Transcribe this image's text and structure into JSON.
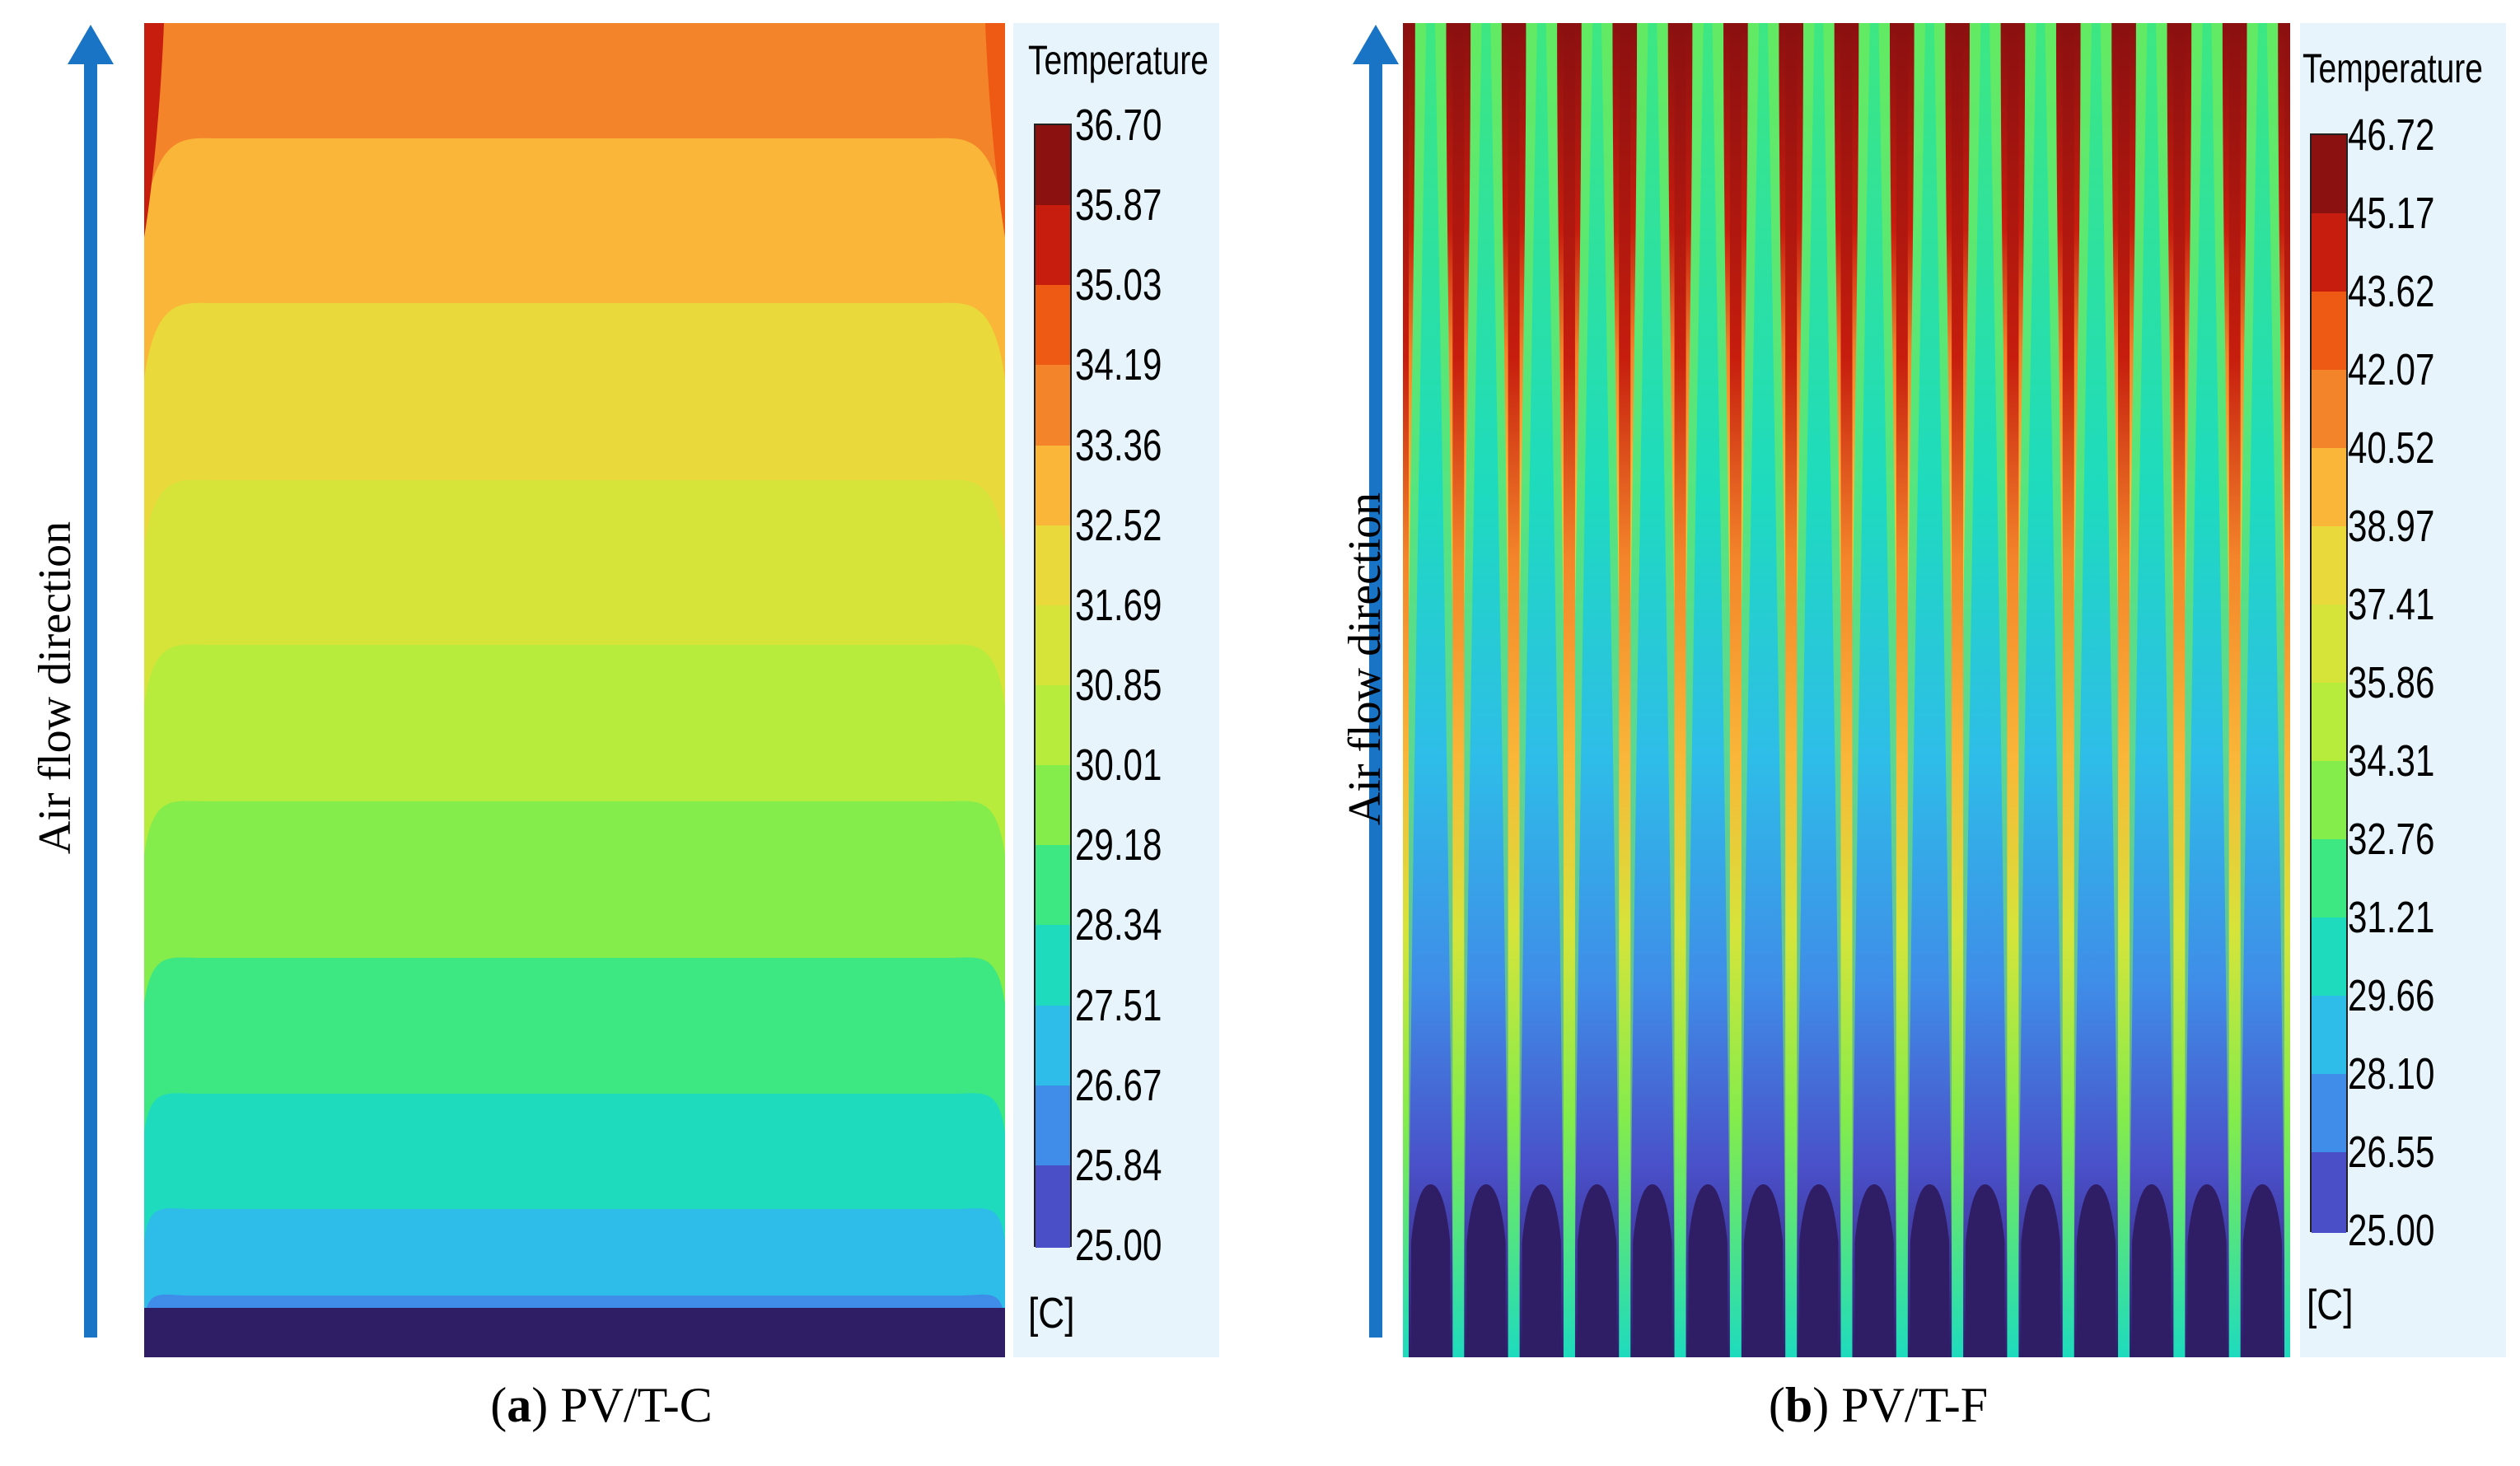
{
  "panels": [
    {
      "id": "a",
      "caption_letter": "a",
      "caption_text": "PV/T-C",
      "arrow_label": "Air flow direction",
      "legend": {
        "title": "Temperature",
        "unit": "[C]",
        "ticks": [
          "36.70",
          "35.87",
          "35.03",
          "34.19",
          "33.36",
          "32.52",
          "31.69",
          "30.85",
          "30.01",
          "29.18",
          "28.34",
          "27.51",
          "26.67",
          "25.84",
          "25.00"
        ],
        "colors": [
          "#8b1010",
          "#c61d0e",
          "#ee5a13",
          "#f3842a",
          "#f9b638",
          "#e9d93a",
          "#d6e43a",
          "#b7ec3c",
          "#84ec4b",
          "#3de782",
          "#1edbbe",
          "#2ebde8",
          "#3f8de8",
          "#4a4fc8",
          "#2f1d66"
        ]
      }
    },
    {
      "id": "b",
      "caption_letter": "b",
      "caption_text": "PV/T-F",
      "arrow_label": "Air flow direction",
      "legend": {
        "title": "Temperature",
        "unit": "[C]",
        "ticks": [
          "46.72",
          "45.17",
          "43.62",
          "42.07",
          "40.52",
          "38.97",
          "37.41",
          "35.86",
          "34.31",
          "32.76",
          "31.21",
          "29.66",
          "28.10",
          "26.55",
          "25.00"
        ],
        "colors": [
          "#8b1010",
          "#c61d0e",
          "#ee5a13",
          "#f3842a",
          "#f9b638",
          "#e9d93a",
          "#d6e43a",
          "#b7ec3c",
          "#84ec4b",
          "#3de782",
          "#1edbbe",
          "#2ebde8",
          "#3f8de8",
          "#4a4fc8",
          "#2f1d66"
        ]
      }
    }
  ],
  "colors": {
    "arrow": "#1a74c6",
    "legend_bg": "#e7f4fb"
  }
}
